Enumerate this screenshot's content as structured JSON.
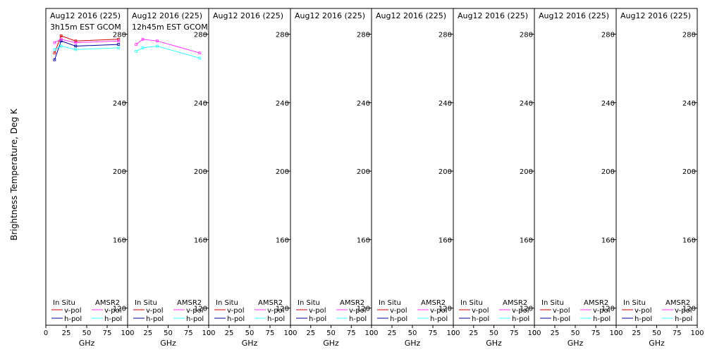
{
  "chart_data": {
    "type": "line",
    "ylabel": "Brightness Temperature, Deg K",
    "xlabel": "GHz",
    "xlim": [
      0,
      100
    ],
    "ylim": [
      110,
      295
    ],
    "xticks": [
      "0",
      "25",
      "50",
      "75",
      "100"
    ],
    "yticks": [
      120,
      160,
      200,
      240,
      280
    ],
    "grid": false,
    "legend": {
      "placement": "bottom",
      "headers": [
        "In Situ",
        "AMSR2"
      ],
      "entries": [
        {
          "label": "v-pol",
          "group": "In Situ",
          "color": "#cc0000"
        },
        {
          "label": "h-pol",
          "group": "In Situ",
          "color": "#000099"
        },
        {
          "label": "v-pol",
          "group": "AMSR2",
          "color": "#ff33ff"
        },
        {
          "label": "h-pol",
          "group": "AMSR2",
          "color": "#33ffff"
        }
      ]
    },
    "panels": [
      {
        "title": "Aug12 2016 (225)",
        "subtitle": "3h15m EST GCOM",
        "series": [
          {
            "name": "In Situ v-pol",
            "color": "#cc0000",
            "x": [
              10.65,
              18.7,
              36.5,
              89
            ],
            "y": [
              269,
              279,
              276,
              277
            ]
          },
          {
            "name": "In Situ h-pol",
            "color": "#000099",
            "x": [
              10.65,
              18.7,
              36.5,
              89
            ],
            "y": [
              265,
              276,
              273,
              274
            ]
          },
          {
            "name": "AMSR2 v-pol",
            "color": "#ff33ff",
            "x": [
              10.65,
              18.7,
              36.5,
              89
            ],
            "y": [
              275,
              277,
              275,
              276
            ]
          },
          {
            "name": "AMSR2 h-pol",
            "color": "#33ffff",
            "x": [
              10.65,
              18.7,
              36.5,
              89
            ],
            "y": [
              271,
              273,
              271,
              272
            ]
          }
        ]
      },
      {
        "title": "Aug12 2016 (225)",
        "subtitle": "12h45m EST GCOM",
        "series": [
          {
            "name": "AMSR2 v-pol",
            "color": "#ff33ff",
            "x": [
              10.65,
              18.7,
              36.5,
              89
            ],
            "y": [
              274,
              277,
              276,
              269
            ]
          },
          {
            "name": "AMSR2 h-pol",
            "color": "#33ffff",
            "x": [
              10.65,
              18.7,
              36.5,
              89
            ],
            "y": [
              270,
              272,
              273,
              266
            ]
          }
        ]
      },
      {
        "title": "Aug12 2016 (225)",
        "subtitle": "",
        "series": []
      },
      {
        "title": "Aug12 2016 (225)",
        "subtitle": "",
        "series": []
      },
      {
        "title": "Aug12 2016 (225)",
        "subtitle": "",
        "series": []
      },
      {
        "title": "Aug12 2016 (225)",
        "subtitle": "",
        "series": []
      },
      {
        "title": "Aug12 2016 (225)",
        "subtitle": "",
        "series": []
      },
      {
        "title": "Aug12 2016 (225)",
        "subtitle": "",
        "series": []
      }
    ]
  }
}
